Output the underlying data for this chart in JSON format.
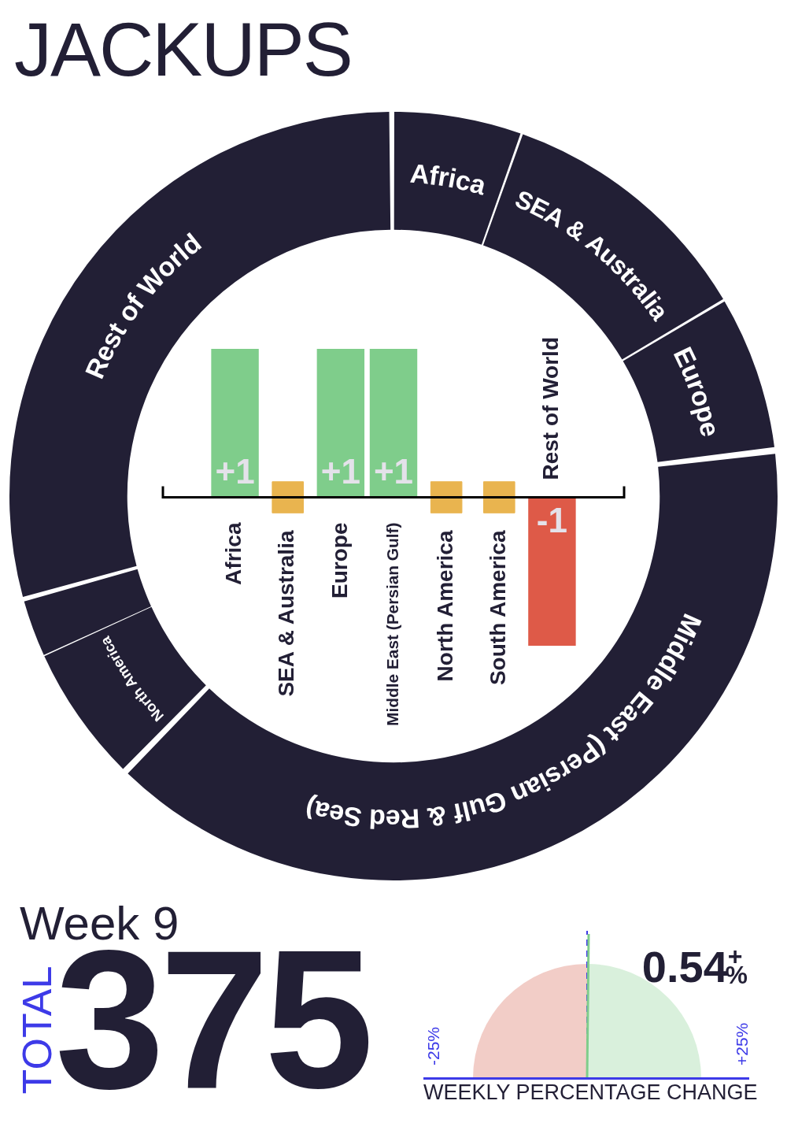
{
  "chart_data": [
    {
      "type": "donut",
      "title": "JACKUPS",
      "categories": [
        "Africa",
        "SEA & Australia",
        "Europe",
        "Middle East (Persian Gulf & Red Sea)",
        "North America",
        null,
        "Rest of World"
      ],
      "values": [
        5.4,
        11.1,
        6.5,
        39.4,
        5.8,
        2.4,
        29.4
      ],
      "colors": [
        "#221f35",
        "#221f35",
        "#221f35",
        "#221f35",
        "#221f35",
        "#221f35",
        "#221f35"
      ]
    },
    {
      "type": "bar",
      "categories": [
        "Africa",
        "SEA & Australia",
        "Europe",
        "Middle East (Persian Gulf)",
        "North America",
        "South America",
        "Rest of World"
      ],
      "marker": "square",
      "series": [
        {
          "values": [
            1,
            0,
            1,
            1,
            0,
            0,
            -1
          ],
          "colors": [
            "#7fcd8b",
            "#e9b44f",
            "#7fcd8b",
            "#7fcd8b",
            "#e9b44f",
            "#e9b44f",
            "#de5a48"
          ],
          "value_labels": [
            "+1",
            null,
            "+1",
            "+1",
            null,
            null,
            "-1"
          ]
        },
        {
          "type": "scatter",
          "x": [
            "SEA & Australia",
            "North America",
            "South America"
          ],
          "values": [
            0,
            0,
            0
          ],
          "color": "#e9b44f"
        }
      ]
    },
    {
      "type": "other",
      "title": "Week 9",
      "ylabel": "TOTAL",
      "annotations": [
        "375"
      ]
    },
    {
      "type": "other",
      "xlabel": "WEEKLY PERCENTAGE CHANGE",
      "annotations": [
        "-25%",
        "+25%",
        "0.54$^{+}$$_{%}$"
      ]
    }
  ]
}
